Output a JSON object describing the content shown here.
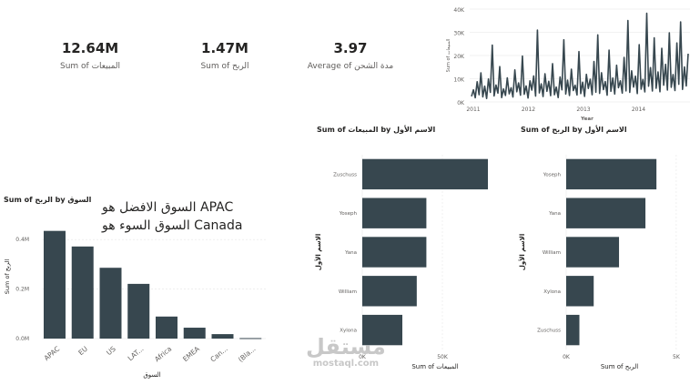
{
  "kpis": [
    {
      "value": "12.64M",
      "label": "Sum of المبيعات"
    },
    {
      "value": "1.47M",
      "label": "Sum of الربح"
    },
    {
      "value": "3.97",
      "label": "Average of مدة الشحن"
    }
  ],
  "annotation": {
    "line1": "السوق الافضل هو APAC",
    "line2": "السوق السوء هو Canada"
  },
  "watermark": {
    "logo": "مستقل",
    "url": "mostaql.com"
  },
  "colors": {
    "bar": "#37474f",
    "grid": "#e6e6e6",
    "axis_text": "#605e5c"
  },
  "chart_data": [
    {
      "type": "line",
      "title": "",
      "xlabel": "Year",
      "ylabel": "Sum of المبيعات",
      "x_ticks": [
        "2011",
        "2012",
        "2013",
        "2014"
      ],
      "y_ticks": [
        "0K",
        "10K",
        "20K",
        "30K",
        "40K"
      ],
      "ylim": [
        0,
        40000
      ],
      "xlim": [
        2011,
        2015
      ],
      "series": [
        {
          "values": [
            2400,
            5200,
            1800,
            8700,
            3100,
            12500,
            2200,
            6800,
            1500,
            9900,
            4100,
            24500,
            2600,
            7300,
            3800,
            15200,
            1900,
            5600,
            2800,
            10400,
            3500,
            6100,
            2100,
            13800,
            4400,
            8200,
            2900,
            19800,
            3300,
            6900,
            1700,
            9100,
            5100,
            11200,
            2500,
            31000,
            3900,
            7800,
            2300,
            12100,
            4600,
            8900,
            2700,
            16500,
            3100,
            6400,
            1900,
            10800,
            5200,
            26800,
            3400,
            9400,
            2800,
            14100,
            4900,
            7200,
            3000,
            21700,
            3600,
            8500,
            2400,
            11900,
            5800,
            9800,
            3100,
            17400,
            4200,
            28900,
            3700,
            12600,
            5300,
            8800,
            2900,
            22300,
            4600,
            10300,
            3400,
            15800,
            6100,
            9100,
            3800,
            19200,
            4800,
            35100,
            4100,
            13400,
            6400,
            11100,
            3600,
            24700,
            5500,
            9700,
            4300,
            38200,
            6800,
            14800,
            4700,
            27600,
            5900,
            12900,
            4400,
            23100,
            7200,
            16200,
            5100,
            29800,
            6300,
            11800,
            4900,
            25400,
            7600,
            34500,
            5400,
            15100,
            6900,
            20800
          ]
        }
      ]
    },
    {
      "type": "bar",
      "orientation": "horizontal",
      "title": "Sum of المبيعات by الاسم الأول",
      "xlabel": "Sum of المبيعات",
      "ylabel": "الاسم الأول",
      "categories": [
        "Zuschuss",
        "Yoseph",
        "Yana",
        "William",
        "Xylona"
      ],
      "values": [
        82000,
        40000,
        40000,
        34000,
        25000
      ],
      "x_ticks": [
        "0K",
        "50K"
      ],
      "xlim": [
        0,
        100000
      ]
    },
    {
      "type": "bar",
      "orientation": "horizontal",
      "title": "Sum of الربح by الاسم الأول",
      "xlabel": "Sum of الربح",
      "ylabel": "الاسم الأول",
      "categories": [
        "Yoseph",
        "Yana",
        "William",
        "Xylona",
        "Zuschuss"
      ],
      "values": [
        4100,
        3600,
        2400,
        1250,
        600
      ],
      "x_ticks": [
        "0K",
        "5K"
      ],
      "xlim": [
        0,
        5500
      ]
    },
    {
      "type": "bar",
      "orientation": "vertical",
      "title": "Sum of الربح by السوق",
      "xlabel": "السوق",
      "ylabel": "Sum of الربح",
      "categories": [
        "APAC",
        "EU",
        "US",
        "LAT...",
        "Africa",
        "EMEA",
        "Can...",
        "(Bla..."
      ],
      "values": [
        435000,
        372000,
        286000,
        221000,
        89000,
        44000,
        18000,
        2000
      ],
      "y_ticks": [
        "0.0M",
        "0.2M",
        "0.4M"
      ],
      "ylim": [
        0,
        0.5
      ]
    }
  ]
}
